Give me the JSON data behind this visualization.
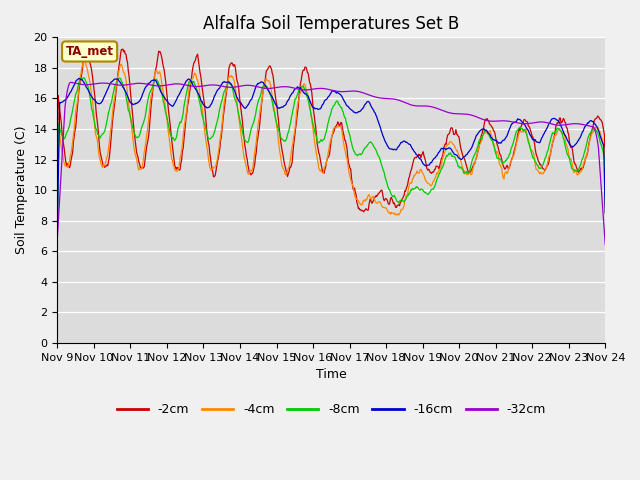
{
  "title": "Alfalfa Soil Temperatures Set B",
  "xlabel": "Time",
  "ylabel": "Soil Temperature (C)",
  "ylim": [
    0,
    20
  ],
  "yticks": [
    0,
    2,
    4,
    6,
    8,
    10,
    12,
    14,
    16,
    18,
    20
  ],
  "bg_color": "#dcdcdc",
  "fig_color": "#f0f0f0",
  "annotation_text": "TA_met",
  "annotation_bg": "#ffffcc",
  "annotation_border": "#aa8800",
  "series_colors": {
    "-2cm": "#cc0000",
    "-4cm": "#ff8800",
    "-8cm": "#00cc00",
    "-16cm": "#0000cc",
    "-32cm": "#9900cc"
  },
  "x_labels": [
    "Nov 9",
    "Nov 10",
    "Nov 11",
    "Nov 12",
    "Nov 13",
    "Nov 14",
    "Nov 15",
    "Nov 16",
    "Nov 17",
    "Nov 18",
    "Nov 19",
    "Nov 20",
    "Nov 21",
    "Nov 22",
    "Nov 23",
    "Nov 24"
  ]
}
